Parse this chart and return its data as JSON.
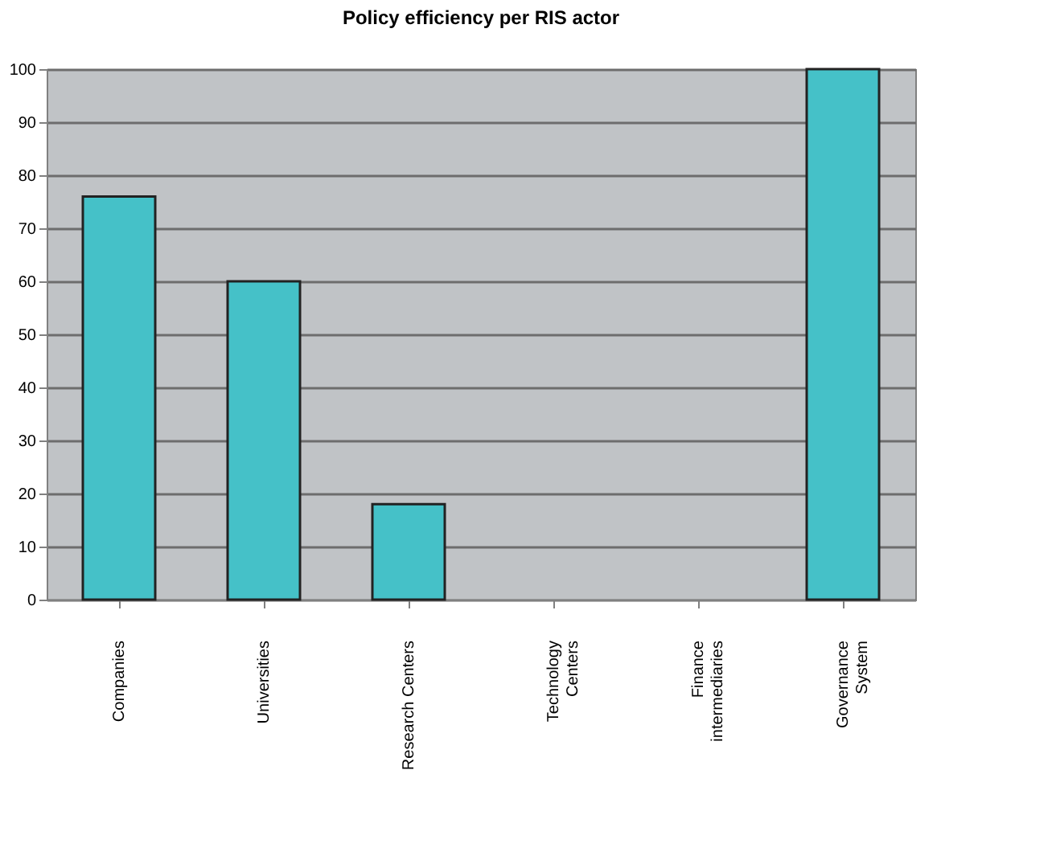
{
  "chart_data": {
    "type": "bar",
    "title": "Policy efficiency per RIS actor",
    "categories": [
      "Companies",
      "Universities",
      "Research Centers",
      "Technology\nCenters",
      "Finance\nintermediaries",
      "Governance\nSystem"
    ],
    "values": [
      76,
      60,
      18,
      0,
      0,
      100
    ],
    "color": "#45c1c8",
    "ylim": [
      0,
      100
    ],
    "yticks": [
      0,
      10,
      20,
      30,
      40,
      50,
      60,
      70,
      80,
      90,
      100
    ],
    "grid": "y"
  }
}
